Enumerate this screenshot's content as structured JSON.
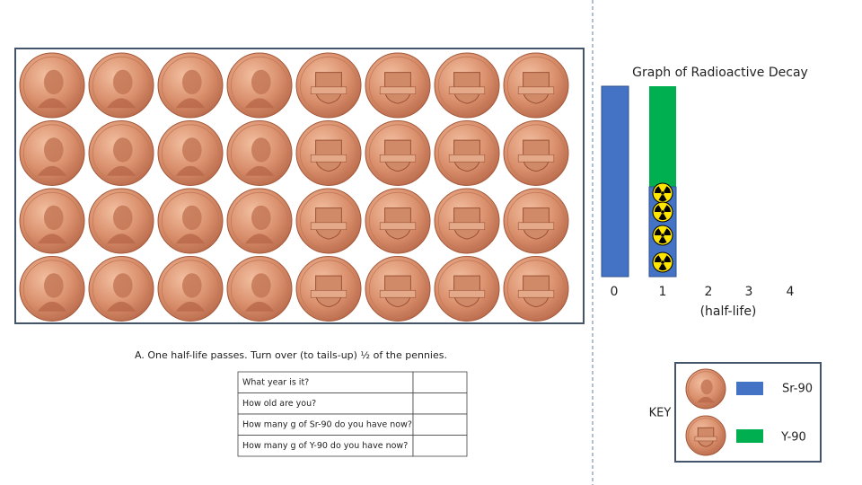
{
  "graph": {
    "title": "Graph of Radioactive Decay",
    "x_labels": [
      "0",
      "1",
      "2",
      "3",
      "4"
    ],
    "x_axis_label": "(half-life)"
  },
  "instruction": "A.  One half-life passes.  Turn over (to tails-up) ½ of the pennies.",
  "table": {
    "rows": [
      "What year is it?",
      "How old are you?",
      "How many g of Sr-90 do you have now?",
      "How many g of Y-90 do you have now?"
    ]
  },
  "key": {
    "title": "KEY",
    "items": [
      "Sr-90",
      "Y-90"
    ]
  }
}
